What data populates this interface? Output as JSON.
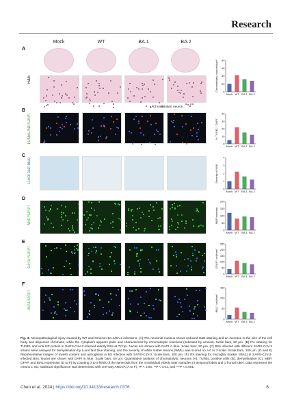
{
  "header": {
    "journal": "Research"
  },
  "figure": {
    "columns": [
      "Mock",
      "WT",
      "BA.1",
      "BA.2"
    ],
    "panels": [
      {
        "letter": "A",
        "row_label": "H&E",
        "legend_note": "Chromatolytic neuron",
        "chart_ylabel": "Chromatolytic neurons/μm²"
      },
      {
        "letter": "B",
        "row_label": "TUNEL/NP/DAPI",
        "chart_ylabel": "% TUNEL⁺ DAPI⁺"
      },
      {
        "letter": "C",
        "row_label": "Luxol fast blue",
        "chart_ylabel": "Severity of WML"
      },
      {
        "letter": "D",
        "row_label": "MBP/DAPI",
        "chart_ylabel": "MBP intensity"
      },
      {
        "letter": "E",
        "row_label": "GFAP/DAPI",
        "chart_ylabel": "GFAP⁺ cell/mm²"
      },
      {
        "letter": "F",
        "row_label": "IBA1/DAPI",
        "chart_ylabel": "IBA1⁺ cell/mm²"
      }
    ],
    "group_labels": [
      "Mock",
      "WT",
      "BA.1",
      "BA.2"
    ],
    "colors": {
      "mock": "#2e4f9c",
      "wt": "#d8464f",
      "ba1": "#2e9a4a",
      "ba2": "#7a4fa3"
    }
  },
  "chart_data": [
    {
      "type": "bar",
      "title": "",
      "categories": [
        "Mock",
        "WT",
        "BA.1",
        "BA.2"
      ],
      "values": [
        20,
        42,
        32,
        28
      ],
      "ylim": [
        0,
        80
      ],
      "yticks": [
        "0",
        "20",
        "40",
        "60",
        "80"
      ],
      "ylabel": "Chromatolytic neurons/μm²"
    },
    {
      "type": "bar",
      "title": "",
      "categories": [
        "Mock",
        "WT",
        "BA.1",
        "BA.2"
      ],
      "values": [
        5,
        22,
        15,
        12
      ],
      "ylim": [
        0,
        40
      ],
      "yticks": [
        "0",
        "10",
        "20",
        "30",
        "40"
      ],
      "ylabel": "% TUNEL⁺ DAPI⁺"
    },
    {
      "type": "bar",
      "title": "",
      "categories": [
        "Mock",
        "WT",
        "BA.1",
        "BA.2"
      ],
      "values": [
        1,
        2.2,
        1.6,
        1.2
      ],
      "ylim": [
        0,
        4
      ],
      "yticks": [
        "0",
        "1",
        "2",
        "3",
        "4"
      ],
      "ylabel": "Severity of WML"
    },
    {
      "type": "bar",
      "title": "",
      "categories": [
        "Mock",
        "WT",
        "BA.1",
        "BA.2"
      ],
      "values": [
        120,
        80,
        95,
        90
      ],
      "ylim": [
        0,
        200
      ],
      "yticks": [
        "0",
        "50",
        "100",
        "150",
        "200"
      ],
      "ylabel": "MBP intensity"
    },
    {
      "type": "bar",
      "title": "",
      "categories": [
        "Mock",
        "WT",
        "BA.1",
        "BA.2"
      ],
      "values": [
        40,
        110,
        90,
        80
      ],
      "ylim": [
        0,
        250
      ],
      "yticks": [
        "0",
        "50",
        "100",
        "150",
        "200",
        "250"
      ],
      "ylabel": "GFAP⁺ cell/mm²"
    },
    {
      "type": "bar",
      "title": "",
      "categories": [
        "Mock",
        "WT",
        "BA.1",
        "BA.2"
      ],
      "values": [
        20,
        55,
        35,
        30
      ],
      "ylim": [
        0,
        150
      ],
      "yticks": [
        "0",
        "50",
        "100",
        "150"
      ],
      "ylabel": "IBA1⁺ cell/mm²"
    }
  ],
  "caption": {
    "label": "Fig. 3.",
    "text": "Neuropathological injury caused by WT and Omicron BA.1/BA.2 infections. (A) The neuronal nucleus shows reduced H&E staining and an increase in the size of the cell body and dispersed chromatin, while the cytoplasm appears paler and characterized by chromatolytic reactions (indicated by arrows). Scale bars, 50 μm. (B) IFA staining for TUNEL and viral NP protein in SARS-CoV-2-infected elderly BSs at 72 hpi. Nuclei are shown with DAPI in blue. Scale bars, 50 μm. (C) BSs infected with different SARS-CoV-2 strains were assayed for demyelination by Luxol fast blue staining, and the severity of white matter lesions (WML) was scored on a 0 to 3 scale. Scale bars, 100 μm. (D and E) Representative images of myelin content and astrogliosis in BS infection with SARS-CoV-2. Scale bars, 200 μm. (F) IFA staining for microglial marker (IBA1) in SARS-CoV-2-infected BSs. Nuclei are shown with DAPI in blue. Scale bars, 50 μm. Quantitative analysis of chromatolytic neurons (A), TUNEL positive cells (B), demyelination (C), MBP, GFAP, and IBA1 expression (D to F) by counting 3 to 5 fields of the spheroids from the 4 individual elderly brain samples (3 temporal lobes and 1 frontal lobe). Data represent the means ± SD; statistical significance was determined with one-way ANOVA (A to F). *P < 0.05, **P < 0.01, and ***P < 0.001."
  },
  "footer": {
    "citation": "Chen et al. 2024 | ",
    "doi": "https://doi.org/10.34133/research.0376",
    "page": "6"
  }
}
